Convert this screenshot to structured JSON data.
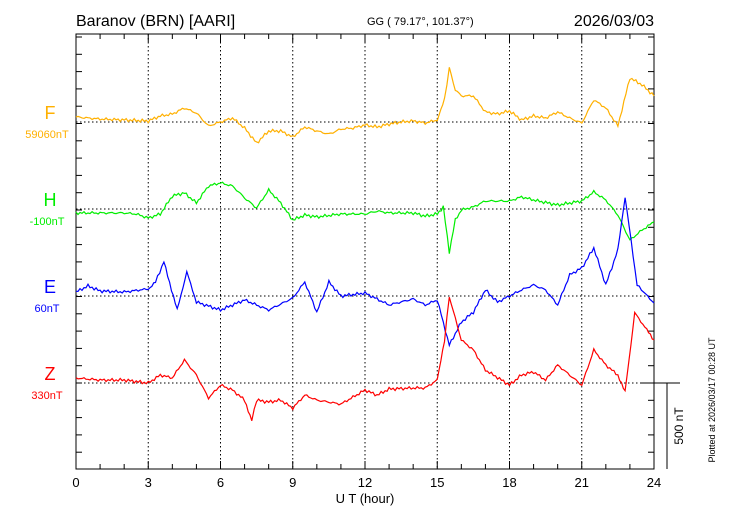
{
  "chart_data": {
    "type": "line",
    "title": "Baranov (BRN)  [AARI]",
    "coords": "GG ( 79.17°, 101.37°)",
    "date": "2026/03/03",
    "xlabel": "U T (hour)",
    "xlim": [
      0,
      24
    ],
    "xticks": [
      "0",
      "3",
      "6",
      "9",
      "12",
      "15",
      "18",
      "21",
      "24"
    ],
    "grid": true,
    "scale_label": "500 nT",
    "scale_nT": 500,
    "plotted_note": "Plotted at 2026/03/17 00:28 UT",
    "series": [
      {
        "name": "F",
        "baseline_label": "59060nT",
        "color": "#ffb000",
        "points": [
          [
            0,
            29
          ],
          [
            1,
            17
          ],
          [
            2,
            12
          ],
          [
            3,
            6
          ],
          [
            3.5,
            35
          ],
          [
            4,
            46
          ],
          [
            4.5,
            81
          ],
          [
            5,
            52
          ],
          [
            5.5,
            -23
          ],
          [
            6,
            0
          ],
          [
            6.5,
            23
          ],
          [
            7,
            -35
          ],
          [
            7.5,
            -122
          ],
          [
            8,
            -52
          ],
          [
            8.5,
            -52
          ],
          [
            9,
            -87
          ],
          [
            9.5,
            -29
          ],
          [
            10,
            -52
          ],
          [
            10.5,
            -70
          ],
          [
            11,
            -41
          ],
          [
            11.5,
            -35
          ],
          [
            12,
            -17
          ],
          [
            12.5,
            -29
          ],
          [
            13,
            -12
          ],
          [
            13.5,
            0
          ],
          [
            14,
            6
          ],
          [
            14.5,
            -6
          ],
          [
            15,
            12
          ],
          [
            15.3,
            128
          ],
          [
            15.5,
            313
          ],
          [
            15.75,
            186
          ],
          [
            16,
            151
          ],
          [
            16.5,
            151
          ],
          [
            17,
            58
          ],
          [
            17.5,
            46
          ],
          [
            18,
            64
          ],
          [
            18.5,
            12
          ],
          [
            19,
            35
          ],
          [
            19.5,
            23
          ],
          [
            20,
            58
          ],
          [
            20.5,
            23
          ],
          [
            21,
            -6
          ],
          [
            21.5,
            128
          ],
          [
            22,
            81
          ],
          [
            22.5,
            -23
          ],
          [
            23,
            255
          ],
          [
            23.5,
            215
          ],
          [
            24,
            151
          ]
        ]
      },
      {
        "name": "H",
        "baseline_label": "-100nT",
        "color": "#00ee00",
        "points": [
          [
            0,
            -23
          ],
          [
            1,
            -23
          ],
          [
            2,
            -23
          ],
          [
            2.5,
            -29
          ],
          [
            3,
            -52
          ],
          [
            3.5,
            -29
          ],
          [
            4,
            75
          ],
          [
            4.5,
            93
          ],
          [
            5,
            35
          ],
          [
            5.5,
            133
          ],
          [
            6,
            151
          ],
          [
            6.5,
            133
          ],
          [
            7,
            64
          ],
          [
            7.5,
            6
          ],
          [
            8,
            110
          ],
          [
            8.5,
            35
          ],
          [
            9,
            -64
          ],
          [
            9.5,
            -35
          ],
          [
            10,
            -46
          ],
          [
            11,
            -29
          ],
          [
            12,
            -29
          ],
          [
            12.5,
            -12
          ],
          [
            13,
            -23
          ],
          [
            14,
            -23
          ],
          [
            14.5,
            -41
          ],
          [
            15,
            -29
          ],
          [
            15.25,
            12
          ],
          [
            15.5,
            -249
          ],
          [
            15.75,
            -64
          ],
          [
            16,
            -6
          ],
          [
            16.5,
            12
          ],
          [
            17,
            46
          ],
          [
            18,
            46
          ],
          [
            18.5,
            70
          ],
          [
            19,
            52
          ],
          [
            20,
            23
          ],
          [
            21,
            46
          ],
          [
            21.5,
            99
          ],
          [
            22,
            52
          ],
          [
            22.5,
            -35
          ],
          [
            23,
            -180
          ],
          [
            23.5,
            -122
          ],
          [
            24,
            -75
          ]
        ]
      },
      {
        "name": "E",
        "baseline_label": "60nT",
        "color": "#0000ff",
        "points": [
          [
            0,
            23
          ],
          [
            0.5,
            58
          ],
          [
            1,
            29
          ],
          [
            2,
            23
          ],
          [
            3,
            41
          ],
          [
            3.3,
            81
          ],
          [
            3.65,
            197
          ],
          [
            4.2,
            -81
          ],
          [
            4.6,
            139
          ],
          [
            5,
            -35
          ],
          [
            6,
            -81
          ],
          [
            7,
            -23
          ],
          [
            8,
            -81
          ],
          [
            9,
            -12
          ],
          [
            9.5,
            81
          ],
          [
            10,
            -93
          ],
          [
            10.5,
            81
          ],
          [
            11,
            0
          ],
          [
            12,
            17
          ],
          [
            13,
            -52
          ],
          [
            14,
            -17
          ],
          [
            14.5,
            -52
          ],
          [
            15,
            -23
          ],
          [
            15.5,
            -284
          ],
          [
            16,
            -151
          ],
          [
            16.5,
            -93
          ],
          [
            17,
            35
          ],
          [
            17.5,
            -35
          ],
          [
            18,
            0
          ],
          [
            18.5,
            35
          ],
          [
            19,
            64
          ],
          [
            19.5,
            35
          ],
          [
            20,
            -52
          ],
          [
            20.5,
            122
          ],
          [
            21,
            162
          ],
          [
            21.5,
            278
          ],
          [
            22,
            64
          ],
          [
            22.5,
            267
          ],
          [
            22.8,
            574
          ],
          [
            23.3,
            64
          ],
          [
            24,
            -41
          ]
        ]
      },
      {
        "name": "Z",
        "baseline_label": "330nT",
        "color": "#ff0000",
        "points": [
          [
            0,
            29
          ],
          [
            1,
            17
          ],
          [
            2,
            17
          ],
          [
            3,
            0
          ],
          [
            3.5,
            46
          ],
          [
            4,
            29
          ],
          [
            4.5,
            133
          ],
          [
            5,
            46
          ],
          [
            5.5,
            -87
          ],
          [
            6,
            -12
          ],
          [
            6.5,
            -41
          ],
          [
            7,
            -99
          ],
          [
            7.3,
            -215
          ],
          [
            7.5,
            -99
          ],
          [
            8,
            -110
          ],
          [
            8.5,
            -99
          ],
          [
            9,
            -145
          ],
          [
            9.5,
            -70
          ],
          [
            10,
            -99
          ],
          [
            11,
            -122
          ],
          [
            12,
            -41
          ],
          [
            12.5,
            -70
          ],
          [
            13,
            -35
          ],
          [
            14,
            -29
          ],
          [
            14.5,
            -29
          ],
          [
            15,
            17
          ],
          [
            15.3,
            249
          ],
          [
            15.5,
            499
          ],
          [
            16,
            249
          ],
          [
            16.5,
            191
          ],
          [
            17,
            75
          ],
          [
            18,
            -12
          ],
          [
            18.5,
            46
          ],
          [
            19,
            64
          ],
          [
            19.5,
            17
          ],
          [
            20,
            104
          ],
          [
            21,
            -12
          ],
          [
            21.5,
            191
          ],
          [
            22,
            104
          ],
          [
            22.5,
            46
          ],
          [
            22.8,
            -52
          ],
          [
            23.2,
            406
          ],
          [
            23.7,
            307
          ],
          [
            24,
            249
          ]
        ]
      }
    ]
  }
}
